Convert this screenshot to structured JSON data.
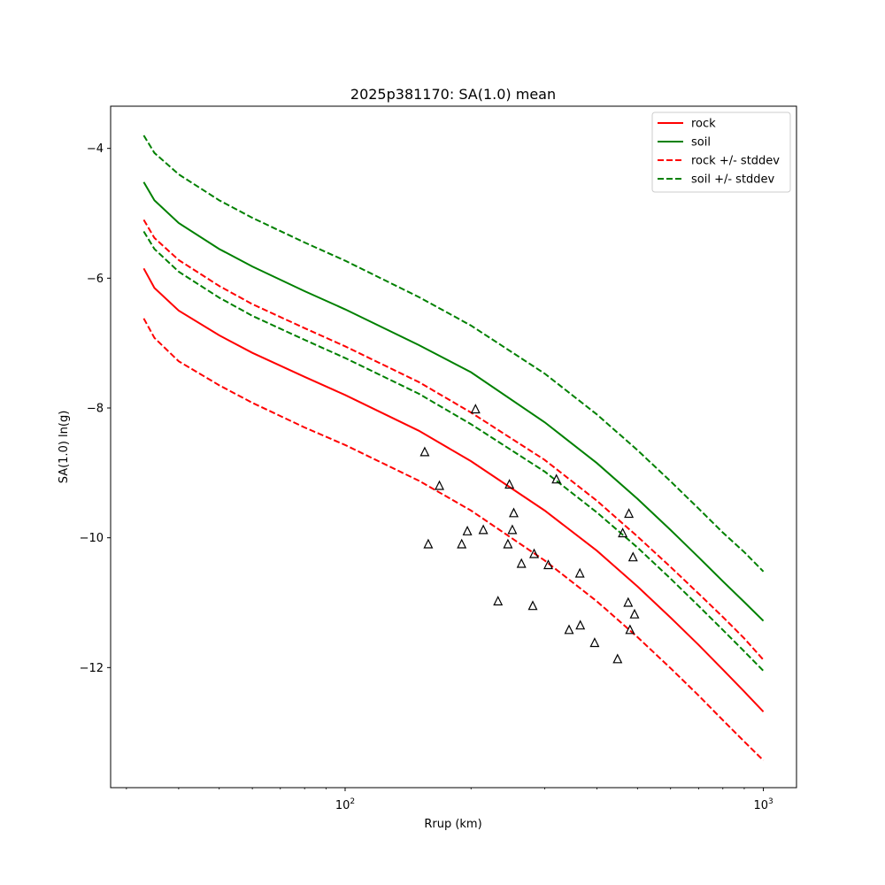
{
  "chart_data": {
    "type": "line",
    "title": "2025p381170: SA(1.0) mean",
    "xlabel": "Rrup (km)",
    "ylabel": "SA(1.0) ln(g)",
    "xscale": "log",
    "xlim": [
      27.5,
      1200
    ],
    "ylim": [
      -13.85,
      -3.35
    ],
    "xticks": [
      {
        "value": 100,
        "base": "10",
        "exp": "2"
      },
      {
        "value": 1000,
        "base": "10",
        "exp": "3"
      }
    ],
    "yticks": [
      {
        "value": -4,
        "label": "−4"
      },
      {
        "value": -6,
        "label": "−6"
      },
      {
        "value": -8,
        "label": "−8"
      },
      {
        "value": -10,
        "label": "−10"
      },
      {
        "value": -12,
        "label": "−12"
      }
    ],
    "grid": false,
    "legend_position": "top-right",
    "x": [
      33,
      35,
      40,
      50,
      60,
      80,
      100,
      150,
      200,
      300,
      400,
      500,
      600,
      700,
      800,
      900,
      1000
    ],
    "series": [
      {
        "name": "rock",
        "color": "#ff0000",
        "dash": "solid",
        "values": [
          -5.85,
          -6.15,
          -6.5,
          -6.88,
          -7.15,
          -7.52,
          -7.8,
          -8.35,
          -8.82,
          -9.58,
          -10.2,
          -10.75,
          -11.23,
          -11.65,
          -12.03,
          -12.37,
          -12.68
        ]
      },
      {
        "name": "soil",
        "color": "#008000",
        "dash": "solid",
        "values": [
          -4.52,
          -4.8,
          -5.15,
          -5.55,
          -5.82,
          -6.2,
          -6.48,
          -7.03,
          -7.45,
          -8.22,
          -8.85,
          -9.4,
          -9.88,
          -10.3,
          -10.67,
          -10.99,
          -11.28
        ]
      },
      {
        "name": "rock +/- stddev",
        "color": "#ff0000",
        "dash": "dashed",
        "values": [
          -5.1,
          -5.38,
          -5.72,
          -6.12,
          -6.4,
          -6.77,
          -7.05,
          -7.6,
          -8.07,
          -8.8,
          -9.43,
          -9.98,
          -10.45,
          -10.86,
          -11.22,
          -11.55,
          -11.88
        ]
      },
      {
        "name": "",
        "color": "#ff0000",
        "dash": "dashed",
        "values": [
          -6.62,
          -6.92,
          -7.28,
          -7.65,
          -7.92,
          -8.3,
          -8.57,
          -9.12,
          -9.58,
          -10.35,
          -10.98,
          -11.53,
          -12.01,
          -12.43,
          -12.81,
          -13.14,
          -13.43
        ]
      },
      {
        "name": "soil +/- stddev",
        "color": "#008000",
        "dash": "dashed",
        "values": [
          -3.8,
          -4.07,
          -4.4,
          -4.8,
          -5.07,
          -5.45,
          -5.73,
          -6.29,
          -6.73,
          -7.47,
          -8.1,
          -8.65,
          -9.13,
          -9.55,
          -9.92,
          -10.22,
          -10.52
        ]
      },
      {
        "name": "",
        "color": "#008000",
        "dash": "dashed",
        "values": [
          -5.28,
          -5.55,
          -5.9,
          -6.3,
          -6.58,
          -6.95,
          -7.23,
          -7.78,
          -8.25,
          -8.98,
          -9.61,
          -10.15,
          -10.63,
          -11.05,
          -11.42,
          -11.75,
          -12.05
        ]
      }
    ],
    "observations": [
      {
        "x": 155,
        "y": -8.68
      },
      {
        "x": 158,
        "y": -10.1
      },
      {
        "x": 168,
        "y": -9.2
      },
      {
        "x": 190,
        "y": -10.1
      },
      {
        "x": 196,
        "y": -9.9
      },
      {
        "x": 205,
        "y": -8.02
      },
      {
        "x": 214,
        "y": -9.88
      },
      {
        "x": 232,
        "y": -10.98
      },
      {
        "x": 245,
        "y": -10.1
      },
      {
        "x": 247,
        "y": -9.18
      },
      {
        "x": 251,
        "y": -9.88
      },
      {
        "x": 253,
        "y": -9.62
      },
      {
        "x": 264,
        "y": -10.4
      },
      {
        "x": 281,
        "y": -11.05
      },
      {
        "x": 283,
        "y": -10.25
      },
      {
        "x": 306,
        "y": -10.42
      },
      {
        "x": 320,
        "y": -9.1
      },
      {
        "x": 343,
        "y": -11.42
      },
      {
        "x": 364,
        "y": -10.55
      },
      {
        "x": 365,
        "y": -11.35
      },
      {
        "x": 395,
        "y": -11.62
      },
      {
        "x": 448,
        "y": -11.87
      },
      {
        "x": 461,
        "y": -9.93
      },
      {
        "x": 475,
        "y": -11.0
      },
      {
        "x": 477,
        "y": -9.63
      },
      {
        "x": 480,
        "y": -11.42
      },
      {
        "x": 488,
        "y": -10.3
      },
      {
        "x": 492,
        "y": -11.18
      }
    ]
  }
}
